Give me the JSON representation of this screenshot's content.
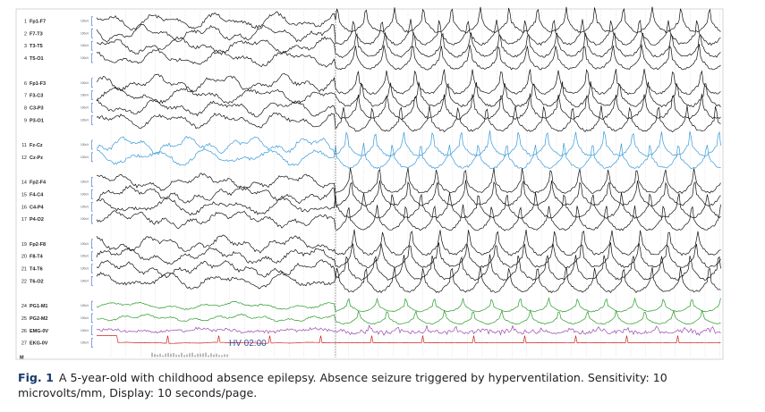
{
  "figure": {
    "channels": [
      {
        "number": "1",
        "name": "Fp1-F7"
      },
      {
        "number": "2",
        "name": "F7-T3"
      },
      {
        "number": "3",
        "name": "T3-T5"
      },
      {
        "number": "4",
        "name": "T5-O1"
      },
      {
        "number": "6",
        "name": "Fp1-F3"
      },
      {
        "number": "7",
        "name": "F3-C3"
      },
      {
        "number": "8",
        "name": "C3-P3"
      },
      {
        "number": "9",
        "name": "P3-O1"
      },
      {
        "number": "11",
        "name": "Fz-Cz"
      },
      {
        "number": "12",
        "name": "Cz-Pz"
      },
      {
        "number": "14",
        "name": "Fp2-F4"
      },
      {
        "number": "15",
        "name": "F4-C4"
      },
      {
        "number": "16",
        "name": "C4-P4"
      },
      {
        "number": "17",
        "name": "P4-O2"
      },
      {
        "number": "19",
        "name": "Fp2-F8"
      },
      {
        "number": "20",
        "name": "F8-T4"
      },
      {
        "number": "21",
        "name": "T4-T6"
      },
      {
        "number": "22",
        "name": "T6-O2"
      },
      {
        "number": "24",
        "name": "PG1-M1"
      },
      {
        "number": "25",
        "name": "PG2-M2"
      },
      {
        "number": "26",
        "name": "EMG-0V"
      },
      {
        "number": "27",
        "name": "EKG-0V"
      }
    ],
    "scale_label": "100uV",
    "marker_row": "M",
    "annotation": "HV 02:00"
  },
  "caption": {
    "label": "Fig. 1",
    "text": "A 5-year-old with childhood absence epilepsy. Absence seizure triggered by hyperventilation. Sensitivity: 10 microvolts/mm, Display: 10 seconds/page."
  }
}
